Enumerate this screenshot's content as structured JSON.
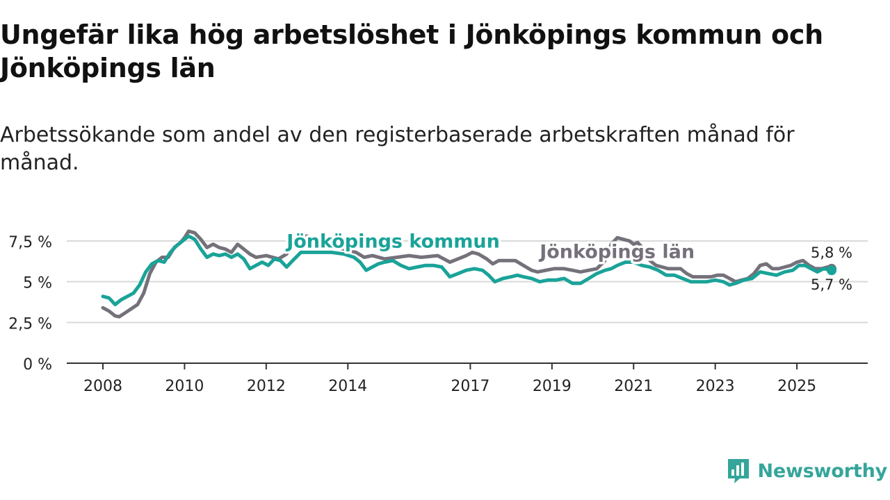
{
  "title": "Ungefär lika hög arbetslöshet i Jönköpings kommun och Jönköpings län",
  "subtitle": "Arbetssökande som andel av den registerbaserade arbetskraften månad för månad.",
  "brand": "Newsworthy",
  "colors": {
    "kommun": "#1aa398",
    "lan": "#75717a",
    "axis": "#333333",
    "grid": "#d9d9d9",
    "brand": "#35a59a"
  },
  "chart_data": {
    "type": "line",
    "title": "Ungefär lika hög arbetslöshet i Jönköpings kommun och Jönköpings län",
    "xlabel": "",
    "ylabel": "",
    "xlim": [
      2008.0,
      2026.75
    ],
    "ylim": [
      0,
      8.4
    ],
    "y_ticks": [
      0,
      2.5,
      5,
      7.5
    ],
    "y_tick_labels": [
      "0 %",
      "2,5 %",
      "5 %",
      "7,5 %"
    ],
    "x_ticks": [
      2008,
      2010,
      2012,
      2014,
      2017,
      2019,
      2021,
      2023,
      2025
    ],
    "x_tick_labels": [
      "2008",
      "2010",
      "2012",
      "2014",
      "2017",
      "2019",
      "2021",
      "2023",
      "2025"
    ],
    "grid": true,
    "series": [
      {
        "name": "Jönköpings län",
        "color": "#75717a",
        "end_label": "5,8 %",
        "points": [
          [
            2008.0,
            3.4
          ],
          [
            2008.15,
            3.2
          ],
          [
            2008.3,
            2.9
          ],
          [
            2008.4,
            2.85
          ],
          [
            2008.55,
            3.1
          ],
          [
            2008.7,
            3.35
          ],
          [
            2008.85,
            3.6
          ],
          [
            2009.0,
            4.3
          ],
          [
            2009.15,
            5.5
          ],
          [
            2009.3,
            6.2
          ],
          [
            2009.45,
            6.5
          ],
          [
            2009.6,
            6.5
          ],
          [
            2009.75,
            7.1
          ],
          [
            2009.9,
            7.4
          ],
          [
            2010.0,
            7.7
          ],
          [
            2010.1,
            8.1
          ],
          [
            2010.25,
            8.0
          ],
          [
            2010.4,
            7.6
          ],
          [
            2010.55,
            7.1
          ],
          [
            2010.7,
            7.3
          ],
          [
            2010.85,
            7.1
          ],
          [
            2011.0,
            7.0
          ],
          [
            2011.15,
            6.8
          ],
          [
            2011.3,
            7.3
          ],
          [
            2011.45,
            7.0
          ],
          [
            2011.6,
            6.7
          ],
          [
            2011.75,
            6.5
          ],
          [
            2012.0,
            6.6
          ],
          [
            2012.3,
            6.4
          ],
          [
            2012.5,
            6.7
          ],
          [
            2012.7,
            7.6
          ],
          [
            2012.85,
            7.8
          ],
          [
            2013.0,
            7.8
          ],
          [
            2013.3,
            7.5
          ],
          [
            2013.6,
            7.2
          ],
          [
            2013.9,
            7.0
          ],
          [
            2014.2,
            6.8
          ],
          [
            2014.4,
            6.5
          ],
          [
            2014.6,
            6.6
          ],
          [
            2014.9,
            6.4
          ],
          [
            2015.2,
            6.5
          ],
          [
            2015.5,
            6.6
          ],
          [
            2015.8,
            6.5
          ],
          [
            2016.2,
            6.6
          ],
          [
            2016.5,
            6.2
          ],
          [
            2016.7,
            6.4
          ],
          [
            2016.9,
            6.6
          ],
          [
            2017.05,
            6.8
          ],
          [
            2017.2,
            6.7
          ],
          [
            2017.4,
            6.4
          ],
          [
            2017.55,
            6.1
          ],
          [
            2017.7,
            6.3
          ],
          [
            2017.9,
            6.3
          ],
          [
            2018.1,
            6.3
          ],
          [
            2018.3,
            6.0
          ],
          [
            2018.5,
            5.7
          ],
          [
            2018.65,
            5.6
          ],
          [
            2018.85,
            5.7
          ],
          [
            2019.05,
            5.8
          ],
          [
            2019.3,
            5.8
          ],
          [
            2019.5,
            5.7
          ],
          [
            2019.7,
            5.6
          ],
          [
            2019.9,
            5.7
          ],
          [
            2020.1,
            5.8
          ],
          [
            2020.3,
            6.3
          ],
          [
            2020.45,
            7.3
          ],
          [
            2020.6,
            7.7
          ],
          [
            2020.75,
            7.6
          ],
          [
            2020.9,
            7.5
          ],
          [
            2021.0,
            7.3
          ],
          [
            2021.1,
            7.4
          ],
          [
            2021.25,
            7.0
          ],
          [
            2021.4,
            6.3
          ],
          [
            2021.55,
            6.0
          ],
          [
            2021.7,
            5.9
          ],
          [
            2021.85,
            5.8
          ],
          [
            2022.0,
            5.8
          ],
          [
            2022.15,
            5.8
          ],
          [
            2022.3,
            5.5
          ],
          [
            2022.45,
            5.3
          ],
          [
            2022.6,
            5.3
          ],
          [
            2022.75,
            5.3
          ],
          [
            2022.9,
            5.3
          ],
          [
            2023.05,
            5.4
          ],
          [
            2023.2,
            5.4
          ],
          [
            2023.35,
            5.2
          ],
          [
            2023.5,
            5.0
          ],
          [
            2023.65,
            5.1
          ],
          [
            2023.8,
            5.2
          ],
          [
            2023.95,
            5.5
          ],
          [
            2024.1,
            6.0
          ],
          [
            2024.25,
            6.1
          ],
          [
            2024.4,
            5.8
          ],
          [
            2024.55,
            5.8
          ],
          [
            2024.7,
            5.9
          ],
          [
            2024.85,
            6.0
          ],
          [
            2025.0,
            6.2
          ],
          [
            2025.15,
            6.3
          ],
          [
            2025.3,
            6.0
          ],
          [
            2025.45,
            5.8
          ],
          [
            2025.6,
            5.8
          ],
          [
            2025.75,
            5.9
          ],
          [
            2025.85,
            5.8
          ]
        ]
      },
      {
        "name": "Jönköpings kommun",
        "color": "#1aa398",
        "end_label": "5,7 %",
        "points": [
          [
            2008.0,
            4.1
          ],
          [
            2008.15,
            4.0
          ],
          [
            2008.3,
            3.6
          ],
          [
            2008.45,
            3.9
          ],
          [
            2008.6,
            4.1
          ],
          [
            2008.75,
            4.3
          ],
          [
            2008.9,
            4.8
          ],
          [
            2009.05,
            5.6
          ],
          [
            2009.2,
            6.1
          ],
          [
            2009.35,
            6.3
          ],
          [
            2009.5,
            6.2
          ],
          [
            2009.65,
            6.8
          ],
          [
            2009.8,
            7.2
          ],
          [
            2009.95,
            7.5
          ],
          [
            2010.1,
            7.8
          ],
          [
            2010.25,
            7.6
          ],
          [
            2010.4,
            7.0
          ],
          [
            2010.55,
            6.5
          ],
          [
            2010.7,
            6.7
          ],
          [
            2010.85,
            6.6
          ],
          [
            2011.0,
            6.7
          ],
          [
            2011.15,
            6.5
          ],
          [
            2011.3,
            6.7
          ],
          [
            2011.45,
            6.4
          ],
          [
            2011.6,
            5.8
          ],
          [
            2011.75,
            6.0
          ],
          [
            2011.9,
            6.2
          ],
          [
            2012.05,
            6.0
          ],
          [
            2012.2,
            6.4
          ],
          [
            2012.35,
            6.3
          ],
          [
            2012.5,
            5.9
          ],
          [
            2012.65,
            6.3
          ],
          [
            2012.85,
            6.8
          ],
          [
            2013.0,
            6.8
          ],
          [
            2013.3,
            6.8
          ],
          [
            2013.6,
            6.8
          ],
          [
            2013.9,
            6.7
          ],
          [
            2014.15,
            6.5
          ],
          [
            2014.3,
            6.2
          ],
          [
            2014.45,
            5.7
          ],
          [
            2014.6,
            5.9
          ],
          [
            2014.75,
            6.1
          ],
          [
            2014.9,
            6.2
          ],
          [
            2015.1,
            6.3
          ],
          [
            2015.3,
            6.0
          ],
          [
            2015.5,
            5.8
          ],
          [
            2015.7,
            5.9
          ],
          [
            2015.9,
            6.0
          ],
          [
            2016.1,
            6.0
          ],
          [
            2016.3,
            5.9
          ],
          [
            2016.5,
            5.3
          ],
          [
            2016.7,
            5.5
          ],
          [
            2016.9,
            5.7
          ],
          [
            2017.1,
            5.8
          ],
          [
            2017.3,
            5.7
          ],
          [
            2017.45,
            5.4
          ],
          [
            2017.6,
            5.0
          ],
          [
            2017.8,
            5.2
          ],
          [
            2018.0,
            5.3
          ],
          [
            2018.15,
            5.4
          ],
          [
            2018.3,
            5.3
          ],
          [
            2018.5,
            5.2
          ],
          [
            2018.7,
            5.0
          ],
          [
            2018.9,
            5.1
          ],
          [
            2019.1,
            5.1
          ],
          [
            2019.3,
            5.2
          ],
          [
            2019.5,
            4.9
          ],
          [
            2019.7,
            4.9
          ],
          [
            2019.9,
            5.2
          ],
          [
            2020.1,
            5.5
          ],
          [
            2020.3,
            5.7
          ],
          [
            2020.45,
            5.8
          ],
          [
            2020.6,
            6.0
          ],
          [
            2020.8,
            6.2
          ],
          [
            2021.0,
            6.2
          ],
          [
            2021.2,
            6.0
          ],
          [
            2021.4,
            5.9
          ],
          [
            2021.6,
            5.7
          ],
          [
            2021.8,
            5.4
          ],
          [
            2022.0,
            5.4
          ],
          [
            2022.2,
            5.2
          ],
          [
            2022.4,
            5.0
          ],
          [
            2022.6,
            5.0
          ],
          [
            2022.8,
            5.0
          ],
          [
            2023.0,
            5.1
          ],
          [
            2023.2,
            5.0
          ],
          [
            2023.35,
            4.8
          ],
          [
            2023.5,
            4.9
          ],
          [
            2023.7,
            5.1
          ],
          [
            2023.9,
            5.2
          ],
          [
            2024.1,
            5.6
          ],
          [
            2024.3,
            5.5
          ],
          [
            2024.5,
            5.4
          ],
          [
            2024.7,
            5.6
          ],
          [
            2024.9,
            5.7
          ],
          [
            2025.05,
            6.0
          ],
          [
            2025.2,
            6.0
          ],
          [
            2025.35,
            5.8
          ],
          [
            2025.5,
            5.6
          ],
          [
            2025.65,
            5.8
          ],
          [
            2025.85,
            5.7
          ]
        ]
      }
    ],
    "annotations": [
      {
        "text": "Jönköpings kommun",
        "series": "Jönköpings kommun",
        "x": 2012.5,
        "y": 7.1
      },
      {
        "text": "Jönköpings län",
        "series": "Jönköpings län",
        "x": 2018.7,
        "y": 6.45
      }
    ]
  }
}
